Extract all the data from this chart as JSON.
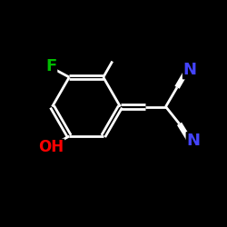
{
  "bg_color": "#000000",
  "bond_color": "#ffffff",
  "atom_colors": {
    "F": "#00bb00",
    "N": "#4444ff",
    "O": "#ff0000",
    "H": "#ffffff",
    "C": "#ffffff"
  },
  "font_size": 12,
  "figsize": [
    2.5,
    2.5
  ],
  "dpi": 100,
  "xlim": [
    0,
    10
  ],
  "ylim": [
    0,
    10
  ]
}
